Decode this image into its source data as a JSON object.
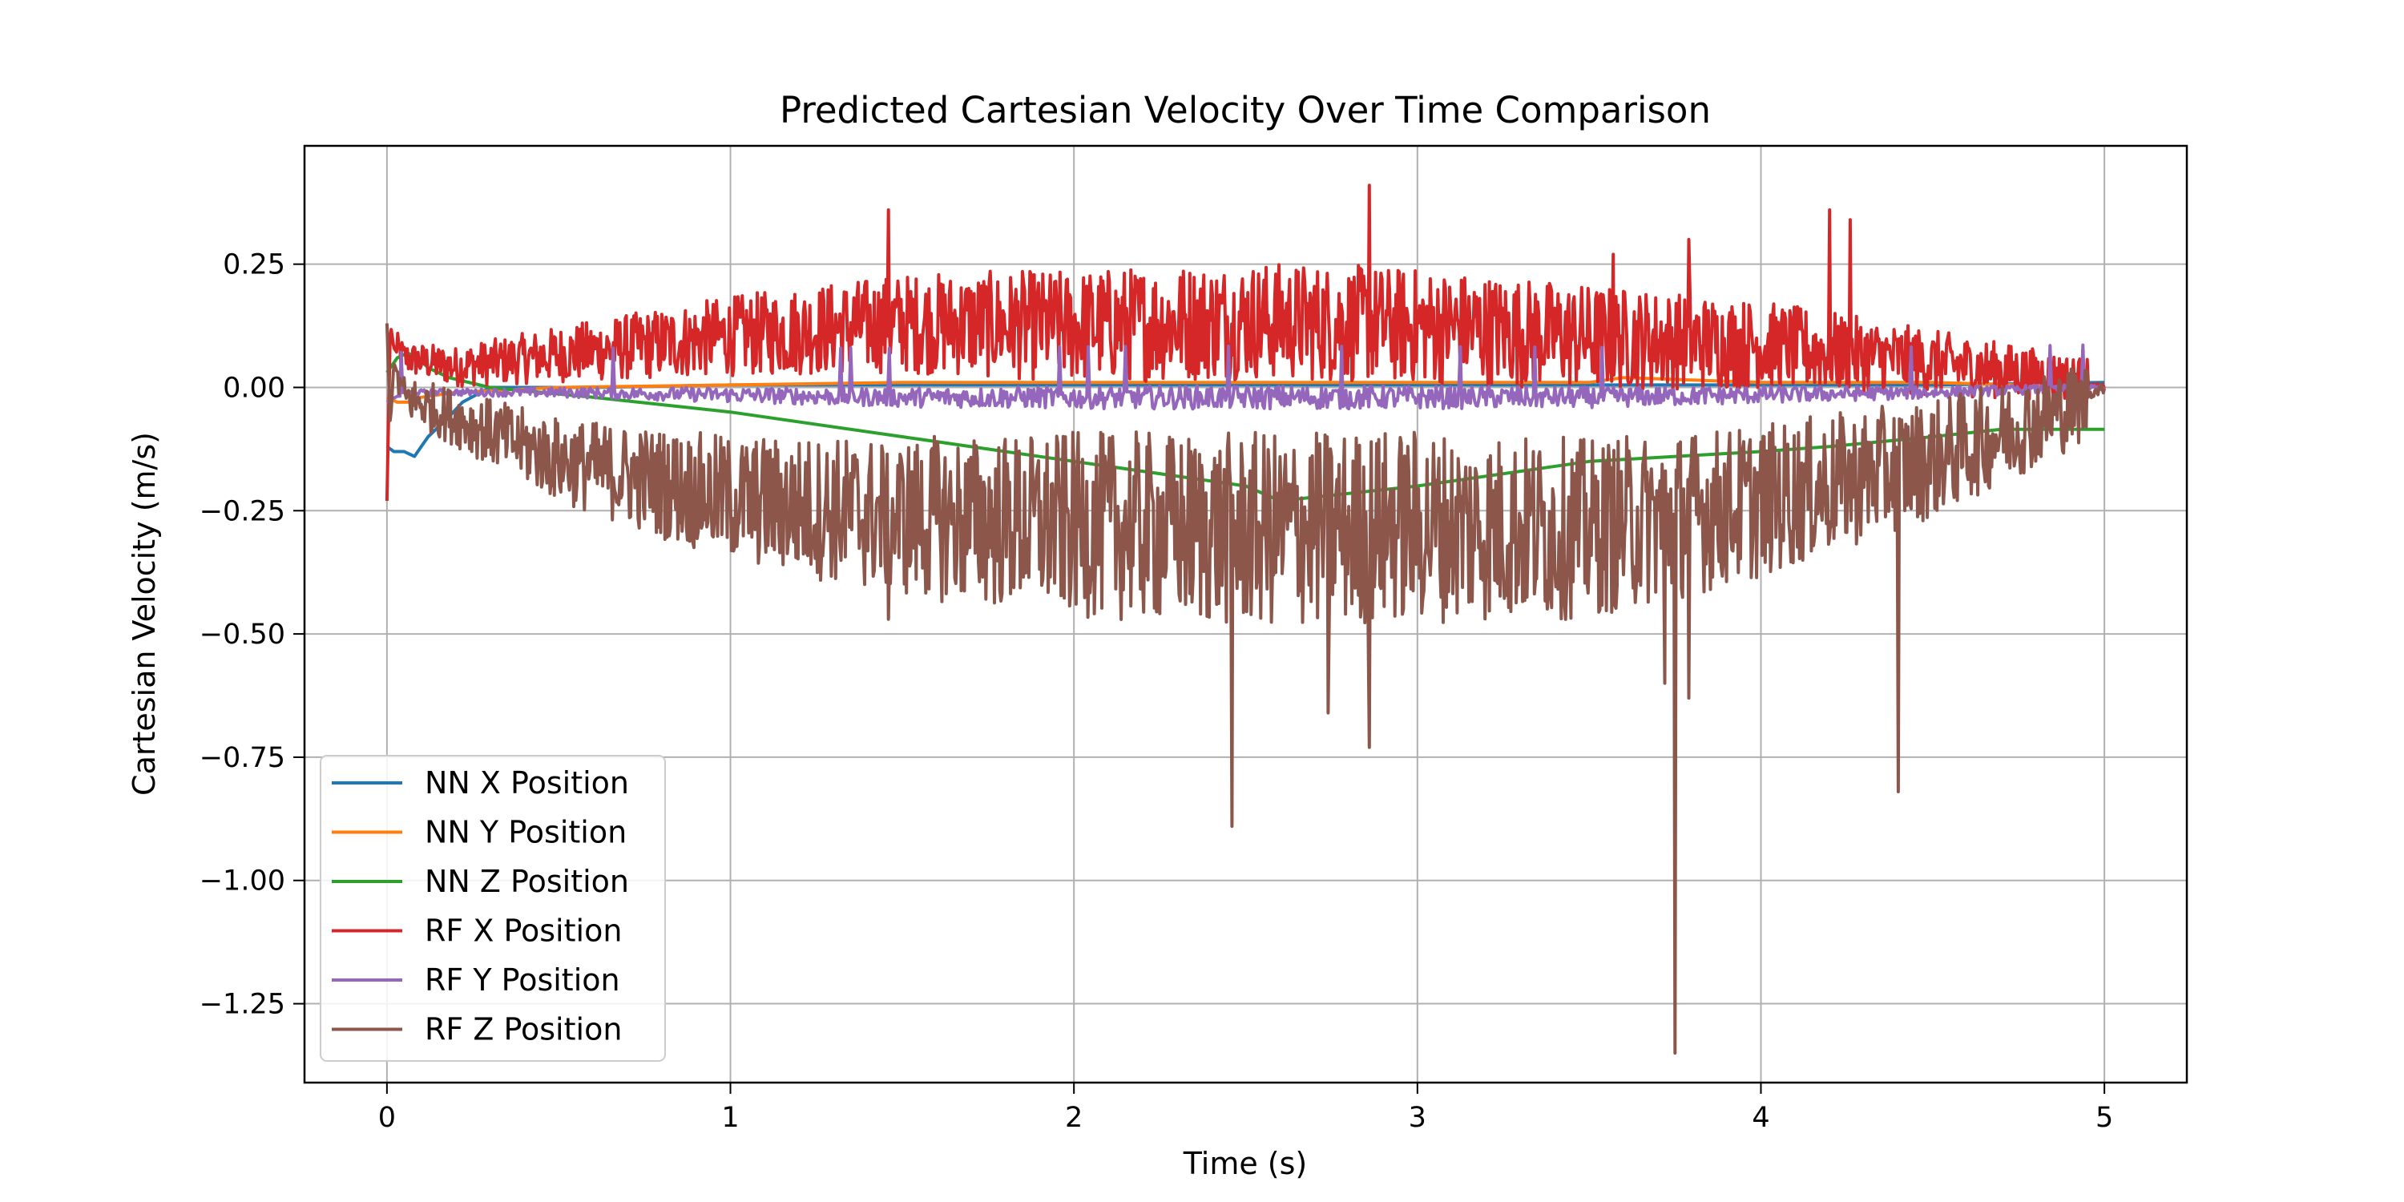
{
  "chart_data": {
    "type": "line",
    "title": "Predicted Cartesian Velocity Over Time Comparison",
    "xlabel": "Time (s)",
    "ylabel": "Cartesian Velocity (m/s)",
    "xlim": [
      -0.24,
      5.24
    ],
    "ylim": [
      -1.41,
      0.49
    ],
    "xticks": [
      0,
      1,
      2,
      3,
      4,
      5
    ],
    "xtick_labels": [
      "0",
      "1",
      "2",
      "3",
      "4",
      "5"
    ],
    "yticks": [
      0.25,
      0.0,
      -0.25,
      -0.5,
      -0.75,
      -1.0,
      -1.25
    ],
    "ytick_labels": [
      "0.25",
      "0.00",
      "−0.25",
      "−0.50",
      "−0.75",
      "−1.00",
      "−1.25"
    ],
    "grid": true,
    "legend_position": "lower-left",
    "series": [
      {
        "name": "NN X Position",
        "color": "#1f77b4",
        "x": [
          0,
          0.02,
          0.05,
          0.08,
          0.1,
          0.12,
          0.15,
          0.18,
          0.22,
          0.3,
          0.6,
          1,
          1.5,
          2,
          2.5,
          3,
          3.5,
          4,
          4.5,
          5
        ],
        "y": [
          -0.12,
          -0.13,
          -0.13,
          -0.14,
          -0.12,
          -0.1,
          -0.08,
          -0.06,
          -0.03,
          0.0,
          0.0,
          0.005,
          0.005,
          0.005,
          0.005,
          0.005,
          0.005,
          0.005,
          0.005,
          0.01
        ]
      },
      {
        "name": "NN Y Position",
        "color": "#ff7f0e",
        "x": [
          0,
          0.03,
          0.06,
          0.1,
          0.2,
          0.5,
          1,
          1.5,
          2,
          2.5,
          3,
          3.5,
          3.6,
          4,
          4.5,
          5
        ],
        "y": [
          -0.02,
          -0.03,
          -0.03,
          -0.02,
          -0.01,
          0.0,
          0.005,
          0.01,
          0.01,
          0.01,
          0.01,
          0.01,
          0.02,
          0.01,
          0.01,
          0.0
        ]
      },
      {
        "name": "NN Z Position",
        "color": "#2ca02c",
        "x": [
          0,
          0.03,
          0.06,
          0.09,
          0.12,
          0.18,
          0.3,
          0.6,
          1,
          1.5,
          2,
          2.5,
          2.6,
          3,
          3.5,
          4,
          4.2,
          4.5,
          4.7,
          5
        ],
        "y": [
          0.03,
          0.06,
          0.07,
          0.06,
          0.04,
          0.02,
          0.0,
          -0.02,
          -0.05,
          -0.1,
          -0.15,
          -0.2,
          -0.23,
          -0.2,
          -0.15,
          -0.13,
          -0.12,
          -0.1,
          -0.085,
          -0.085
        ]
      },
      {
        "name": "RF X Position",
        "color": "#d62728",
        "x": [
          0,
          0.01,
          0.02,
          0.05,
          0.2,
          0.5,
          1,
          1.5,
          2,
          2.5,
          3,
          3.5,
          4,
          4.5,
          5
        ],
        "y": [
          -0.23,
          0.13,
          0.08,
          0.05,
          0.03,
          0.05,
          0.08,
          0.1,
          0.09,
          0.1,
          0.09,
          0.07,
          0.06,
          0.03,
          0.0
        ]
      },
      {
        "name": "RF Y Position",
        "color": "#9467bd",
        "x": [
          0,
          0.05,
          0.2,
          0.5,
          1,
          1.5,
          2,
          2.5,
          3,
          3.5,
          4,
          4.5,
          5
        ],
        "y": [
          -0.03,
          -0.01,
          -0.01,
          -0.01,
          -0.015,
          -0.02,
          -0.02,
          -0.02,
          -0.02,
          -0.02,
          -0.015,
          -0.01,
          0.0
        ]
      },
      {
        "name": "RF Z Position",
        "color": "#8c564b",
        "x": [
          0,
          0.01,
          0.02,
          0.05,
          0.2,
          0.5,
          1,
          1.5,
          2,
          2.5,
          3,
          3.5,
          4,
          4.5,
          5
        ],
        "y": [
          0.13,
          -0.08,
          0.05,
          -0.01,
          -0.05,
          -0.13,
          -0.2,
          -0.23,
          -0.24,
          -0.25,
          -0.24,
          -0.25,
          -0.2,
          -0.12,
          0.0
        ]
      }
    ],
    "spikes": {
      "rf_x_max": [
        [
          1.46,
          0.36
        ],
        [
          2.86,
          0.41
        ],
        [
          4.2,
          0.36
        ],
        [
          4.26,
          0.34
        ],
        [
          3.57,
          0.27
        ],
        [
          3.79,
          0.3
        ]
      ],
      "rf_z_min": [
        [
          3.75,
          -1.35
        ],
        [
          2.46,
          -0.89
        ],
        [
          4.4,
          -0.82
        ],
        [
          2.86,
          -0.73
        ],
        [
          2.74,
          -0.66
        ],
        [
          1.46,
          -0.47
        ],
        [
          3.72,
          -0.6
        ],
        [
          3.79,
          -0.63
        ]
      ]
    }
  }
}
